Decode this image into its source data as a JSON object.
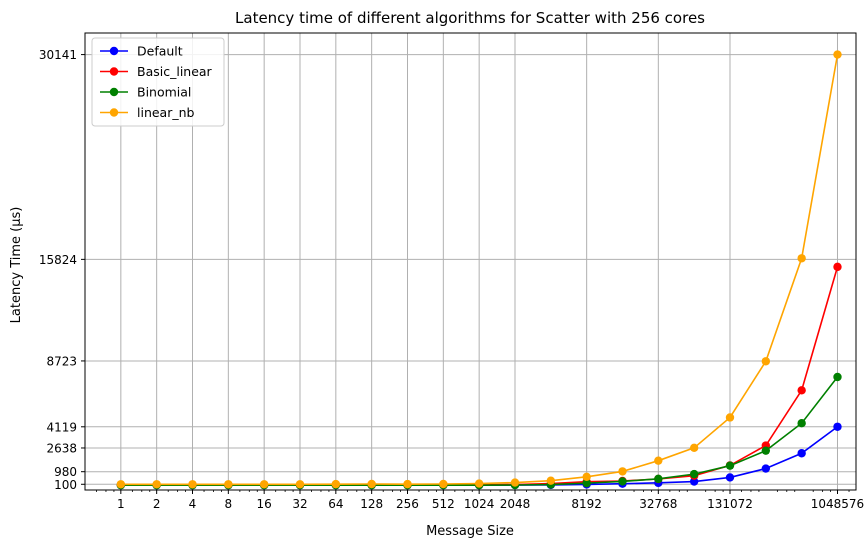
{
  "chart_data": {
    "type": "line",
    "title": "Latency time of different algorithms for Scatter with 256 cores",
    "xlabel": "Message Size",
    "ylabel": "Latency Time (µs)",
    "xscale": "log2",
    "xlim": [
      0.5,
      1500000
    ],
    "ylim": [
      -300,
      31650
    ],
    "x": [
      1,
      2,
      4,
      8,
      16,
      32,
      64,
      128,
      256,
      512,
      1024,
      2048,
      4096,
      8192,
      16384,
      32768,
      65536,
      131072,
      262144,
      524288,
      1048576
    ],
    "xticks": [
      "1",
      "2",
      "4",
      "8",
      "16",
      "32",
      "64",
      "128",
      "256",
      "512",
      "1024",
      "2048",
      "8192",
      "32768",
      "131072",
      "1048576"
    ],
    "xtick_values": [
      1,
      2,
      4,
      8,
      16,
      32,
      64,
      128,
      256,
      512,
      1024,
      2048,
      8192,
      32768,
      131072,
      1048576
    ],
    "yticks": [
      "100",
      "980",
      "2638",
      "4119",
      "8723",
      "15824",
      "30141"
    ],
    "ytick_values": [
      100,
      980,
      2638,
      4119,
      8723,
      15824,
      30141
    ],
    "grid": true,
    "legend_position": "top-left",
    "series": [
      {
        "name": "Default",
        "color": "#0000ff",
        "values": [
          40,
          40,
          40,
          40,
          40,
          40,
          40,
          40,
          40,
          40,
          40,
          45,
          55,
          90,
          140,
          200,
          290,
          580,
          1200,
          2270,
          4120
        ]
      },
      {
        "name": "Basic_linear",
        "color": "#ff0000",
        "values": [
          60,
          60,
          60,
          60,
          60,
          60,
          60,
          60,
          60,
          60,
          60,
          80,
          150,
          280,
          330,
          470,
          700,
          1420,
          2810,
          6670,
          15300
        ]
      },
      {
        "name": "Binomial",
        "color": "#008000",
        "values": [
          40,
          40,
          40,
          40,
          40,
          40,
          40,
          40,
          40,
          40,
          40,
          50,
          80,
          180,
          300,
          480,
          810,
          1400,
          2450,
          4370,
          7600
        ]
      },
      {
        "name": "linear_nb",
        "color": "#ffa500",
        "values": [
          100,
          100,
          100,
          100,
          100,
          100,
          110,
          120,
          110,
          120,
          150,
          220,
          350,
          620,
          1000,
          1750,
          2650,
          4770,
          8700,
          15900,
          30141
        ]
      }
    ]
  }
}
